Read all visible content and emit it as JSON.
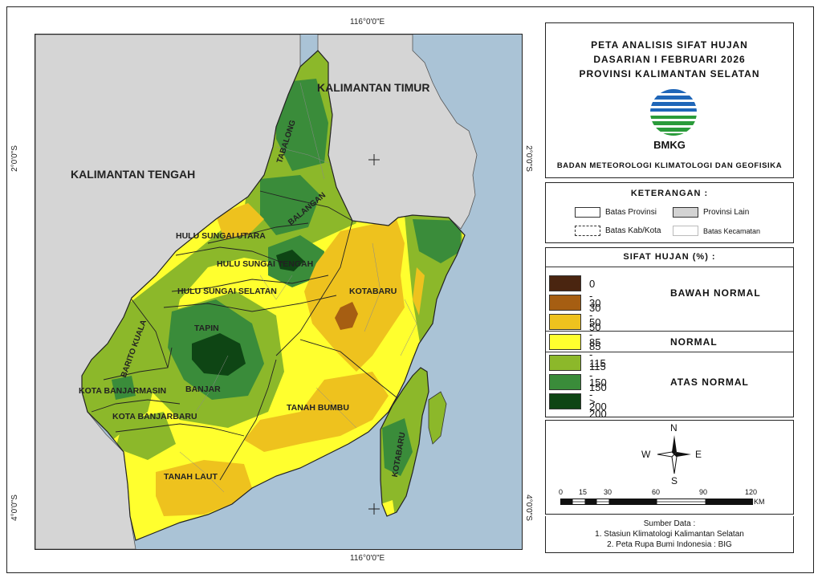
{
  "map": {
    "title_lines": [
      "PETA ANALISIS SIFAT HUJAN",
      "DASARIAN I FEBRUARI 2026",
      "PROVINSI KALIMANTAN SELATAN"
    ],
    "agency": "BADAN METEOROLOGI KLIMATOLOGI DAN GEOFISIKA",
    "logo_text": "BMKG",
    "coords": {
      "lon_top": "116°0'0\"E",
      "lon_bottom": "116°0'0\"E",
      "lat_2": "2°0'0\"S",
      "lat_4": "4°0'0\"S"
    },
    "regions": {
      "neighbors": [
        "KALIMANTAN TIMUR",
        "KALIMANTAN TENGAH"
      ],
      "districts": [
        "TABALONG",
        "BALANGAN",
        "HULU SUNGAI UTARA",
        "HULU SUNGAI TENGAH",
        "HULU SUNGAI SELATAN",
        "KOTABARU",
        "TAPIN",
        "BARITO KUALA",
        "KOTA BANJARMASIN",
        "BANJAR",
        "KOTA BANJARBARU",
        "TANAH BUMBU",
        "TANAH LAUT",
        "KOTABARU"
      ]
    }
  },
  "legend": {
    "title": "KETERANGAN :",
    "items": [
      {
        "label": "Batas Provinsi",
        "style": "solid-border",
        "fill": "#ffffff"
      },
      {
        "label": "Provinsi Lain",
        "style": "solid-fill",
        "fill": "#d3d3d3"
      },
      {
        "label": "Batas Kab/Kota",
        "style": "dashed-border",
        "fill": "#ffffff"
      },
      {
        "label": "Batas Kecamatan",
        "style": "light-border",
        "fill": "#ffffff"
      }
    ]
  },
  "classes": {
    "title": "SIFAT HUJAN (%) :",
    "items": [
      {
        "range": "0 - 30",
        "color": "#4a2510"
      },
      {
        "range": "30 - 50",
        "color": "#a65e12"
      },
      {
        "range": "50 - 85",
        "color": "#eec21e"
      },
      {
        "range": "85 - 115",
        "color": "#ffff2e"
      },
      {
        "range": "115 - 150",
        "color": "#8cb82a"
      },
      {
        "range": "150 - 200",
        "color": "#3a8c3a"
      },
      {
        "range": "> 200",
        "color": "#0e4514"
      }
    ],
    "groups": [
      "BAWAH NORMAL",
      "NORMAL",
      "ATAS NORMAL"
    ]
  },
  "compass": {
    "n": "N",
    "s": "S",
    "e": "E",
    "w": "W"
  },
  "scalebar": {
    "ticks": [
      "0",
      "15",
      "30",
      "60",
      "90",
      "120"
    ],
    "unit": "KM"
  },
  "source": {
    "title": "Sumber Data :",
    "lines": [
      "1. Stasiun Klimatologi Kalimantan Selatan",
      "2. Peta Rupa Bumi Indonesia : BIG"
    ]
  }
}
